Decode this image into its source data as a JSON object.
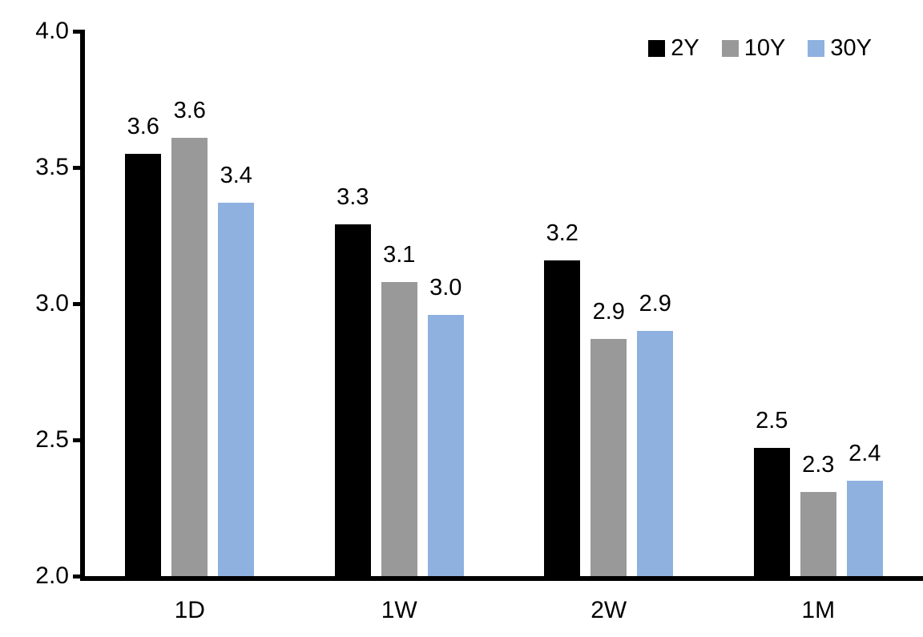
{
  "chart_data": {
    "type": "bar",
    "title": "",
    "xlabel": "",
    "ylabel": "",
    "categories": [
      "1D",
      "1W",
      "2W",
      "1M"
    ],
    "series": [
      {
        "name": "2Y",
        "color": "#000000",
        "values": [
          3.55,
          3.29,
          3.16,
          2.47
        ],
        "labels": [
          "3.6",
          "3.3",
          "3.2",
          "2.5"
        ]
      },
      {
        "name": "10Y",
        "color": "#999999",
        "values": [
          3.61,
          3.08,
          2.87,
          2.31
        ],
        "labels": [
          "3.6",
          "3.1",
          "2.9",
          "2.3"
        ]
      },
      {
        "name": "30Y",
        "color": "#8FB1E0",
        "values": [
          3.37,
          2.96,
          2.9,
          2.35
        ],
        "labels": [
          "3.4",
          "3.0",
          "2.9",
          "2.4"
        ]
      }
    ],
    "ylim": [
      2.0,
      4.0
    ],
    "yticks": [
      {
        "v": 4.0,
        "label": "4.0"
      },
      {
        "v": 3.5,
        "label": "3.5"
      },
      {
        "v": 3.0,
        "label": "3.0"
      },
      {
        "v": 2.5,
        "label": "2.5"
      },
      {
        "v": 2.0,
        "label": "2.0"
      }
    ],
    "legend_position": "top-right",
    "grid": false,
    "axis_color": "#000000",
    "background_color": "#ffffff"
  }
}
